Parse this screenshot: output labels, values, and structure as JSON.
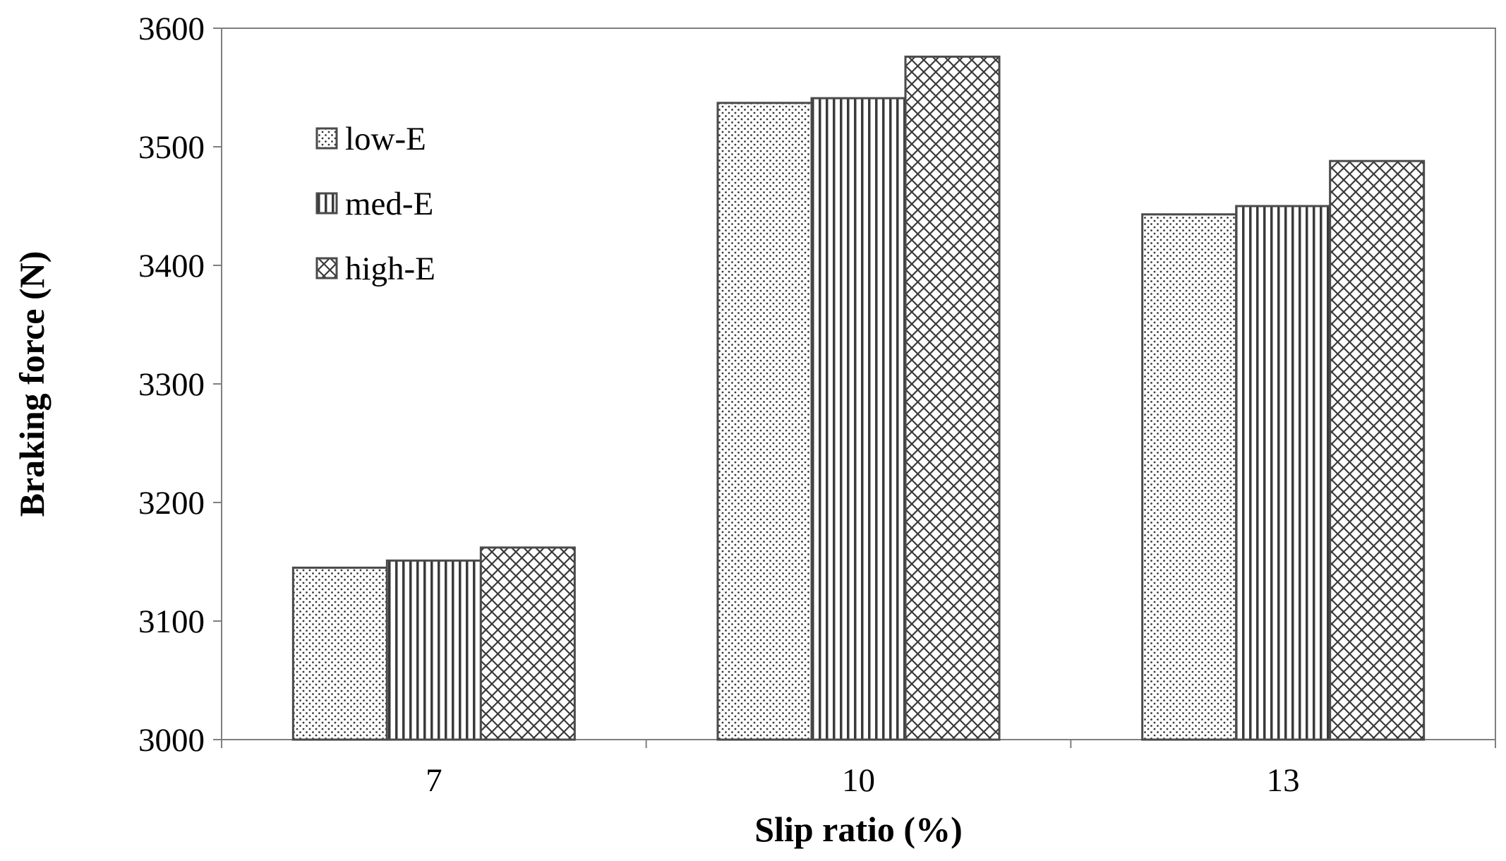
{
  "chart_data": {
    "type": "bar",
    "title": "",
    "xlabel": "Slip ratio (%)",
    "ylabel": "Braking force (N)",
    "categories": [
      "7",
      "10",
      "13"
    ],
    "series": [
      {
        "name": "low-E",
        "pattern": "dots",
        "values": [
          3145,
          3537,
          3443
        ]
      },
      {
        "name": "med-E",
        "pattern": "vertical-lines",
        "values": [
          3151,
          3541,
          3450
        ]
      },
      {
        "name": "high-E",
        "pattern": "crosshatch",
        "values": [
          3162,
          3576,
          3488
        ]
      }
    ],
    "ylim": [
      3000,
      3600
    ],
    "yticks": [
      3000,
      3100,
      3200,
      3300,
      3400,
      3500,
      3600
    ],
    "grid": false,
    "legend_position": "top-left",
    "colors": {
      "bar_fill": "#ffffff",
      "bar_stroke": "#4a4a4a",
      "pattern_ink": "#3a3a3a",
      "axis": "#7f7f7f",
      "text": "#000000"
    }
  }
}
